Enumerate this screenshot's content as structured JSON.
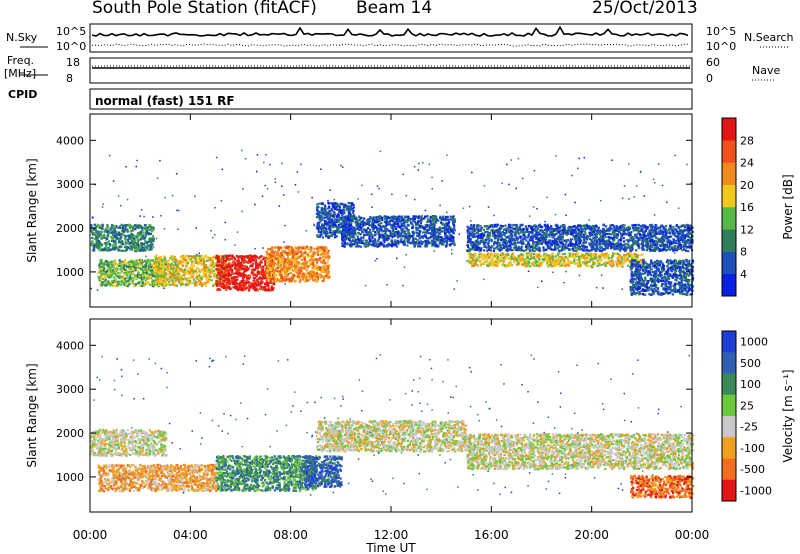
{
  "header": {
    "station": "South Pole Station (fitACF)",
    "beam": "Beam 14",
    "date": "25/Oct/2013"
  },
  "aux_panels": {
    "nsky_label": "N.Sky",
    "nsearch_label": "N.Search",
    "noise_ticks": [
      "10^5",
      "10^0"
    ],
    "freq_label_1": "Freq.",
    "freq_label_2": "[MHz]",
    "freq_ticks": [
      "18",
      "8"
    ],
    "nave_label": "Nave",
    "nave_ticks": [
      "60",
      "0"
    ],
    "cpid_label": "CPID",
    "program": "normal (fast) 151 RF"
  },
  "colors": {
    "power": [
      "#0a1fe6",
      "#1d50b8",
      "#2f7f5c",
      "#57b848",
      "#f0c81e",
      "#f08a1e",
      "#f0501e",
      "#e61414"
    ],
    "velocity": [
      "#1d3fd6",
      "#2f5fb0",
      "#3a8a5a",
      "#6ac83c",
      "#c8c8c8",
      "#f0a01e",
      "#f06e1e",
      "#e61414"
    ]
  },
  "chart_data": [
    {
      "type": "heatmap",
      "panel": "power",
      "ylabel": "Slant Range [km]",
      "xlabel": "Time UT",
      "xlim": [
        0,
        24
      ],
      "ylim": [
        200,
        4600
      ],
      "xticks": [
        "00:00",
        "04:00",
        "08:00",
        "12:00",
        "16:00",
        "20:00",
        "00:00"
      ],
      "yticks": [
        1000,
        2000,
        3000,
        4000
      ],
      "colorbar": {
        "label": "Power [dB]",
        "ticks": [
          4,
          8,
          12,
          16,
          20,
          24,
          28
        ],
        "range": [
          0,
          32
        ]
      },
      "features": [
        {
          "t0": 0.0,
          "t1": 2.5,
          "r0": 1500,
          "r1": 2100,
          "level": 2
        },
        {
          "t0": 0.3,
          "t1": 3.0,
          "r0": 700,
          "r1": 1300,
          "level": 3
        },
        {
          "t0": 2.5,
          "t1": 5.5,
          "r0": 700,
          "r1": 1400,
          "level": 4
        },
        {
          "t0": 5.0,
          "t1": 7.3,
          "r0": 600,
          "r1": 1400,
          "level": 7
        },
        {
          "t0": 7.0,
          "t1": 9.5,
          "r0": 800,
          "r1": 1600,
          "level": 5
        },
        {
          "t0": 9.0,
          "t1": 10.5,
          "r0": 1800,
          "r1": 2600,
          "level": 1
        },
        {
          "t0": 10.0,
          "t1": 14.5,
          "r0": 1600,
          "r1": 2300,
          "level": 1
        },
        {
          "t0": 15.0,
          "t1": 22.0,
          "r0": 1150,
          "r1": 1450,
          "level": 4
        },
        {
          "t0": 15.0,
          "t1": 24.0,
          "r0": 1500,
          "r1": 2100,
          "level": 1
        },
        {
          "t0": 21.5,
          "t1": 24.0,
          "r0": 500,
          "r1": 1300,
          "level": 1
        }
      ]
    },
    {
      "type": "heatmap",
      "panel": "velocity",
      "ylabel": "Slant Range [km]",
      "xlabel": "Time UT",
      "xlim": [
        0,
        24
      ],
      "ylim": [
        200,
        4600
      ],
      "xticks": [
        "00:00",
        "04:00",
        "08:00",
        "12:00",
        "16:00",
        "20:00",
        "00:00"
      ],
      "yticks": [
        1000,
        2000,
        3000,
        4000
      ],
      "colorbar": {
        "label": "Velocity [m s⁻¹]",
        "ticks": [
          1000,
          500,
          100,
          25,
          -25,
          -100,
          -500,
          -1000
        ]
      },
      "features": [
        {
          "t0": 0.0,
          "t1": 3.0,
          "r0": 1500,
          "r1": 2100,
          "level": 4
        },
        {
          "t0": 0.3,
          "t1": 5.0,
          "r0": 700,
          "r1": 1300,
          "level": 5
        },
        {
          "t0": 5.0,
          "t1": 9.0,
          "r0": 700,
          "r1": 1500,
          "level": 2
        },
        {
          "t0": 8.5,
          "t1": 10.0,
          "r0": 800,
          "r1": 1500,
          "level": 1
        },
        {
          "t0": 9.0,
          "t1": 15.0,
          "r0": 1600,
          "r1": 2300,
          "level": 4
        },
        {
          "t0": 15.0,
          "t1": 24.0,
          "r0": 1200,
          "r1": 2000,
          "level": 4
        },
        {
          "t0": 21.5,
          "t1": 24.0,
          "r0": 550,
          "r1": 1050,
          "level": 6
        }
      ]
    }
  ]
}
